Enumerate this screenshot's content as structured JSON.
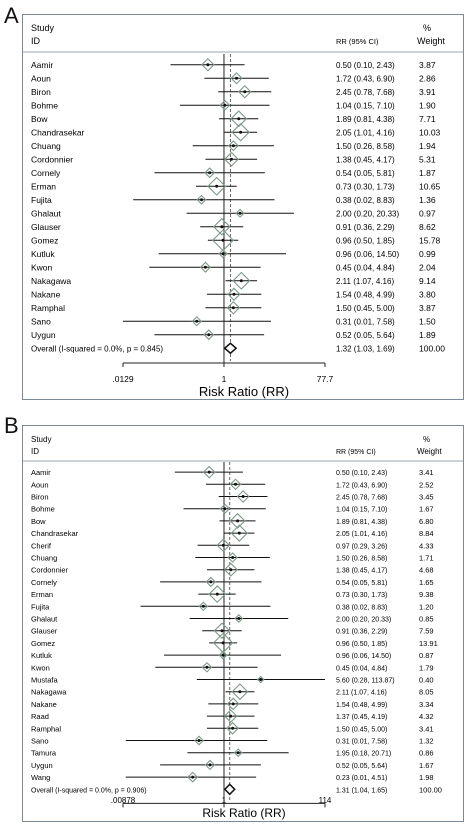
{
  "panels": [
    {
      "letter": "A",
      "study_header": "Study",
      "id_header": "ID",
      "rr_header": "RR (95% CI)",
      "pct_header": "%",
      "weight_header": "Weight",
      "xlabel": "Risk Ratio (RR)",
      "tick_labels": [
        ".0129",
        "1",
        "77.7"
      ]
    },
    {
      "letter": "B",
      "study_header": "Study",
      "id_header": "ID",
      "rr_header": "RR (95% CI)",
      "pct_header": "%",
      "weight_header": "Weight",
      "xlabel": "Risk Ratio (RR)",
      "tick_labels": [
        ".00878",
        "1",
        "114"
      ]
    }
  ],
  "chart_data": [
    {
      "type": "forest",
      "xlabel": "Risk Ratio (RR)",
      "xscale": "log",
      "xlim": [
        0.0129,
        77.7
      ],
      "reference_line": 1,
      "pooled_dashed_line": 1.32,
      "studies": [
        {
          "name": "Aamir",
          "rr": 0.5,
          "lo": 0.1,
          "hi": 2.43,
          "ci_text": "0.50 (0.10, 2.43)",
          "weight": "3.87"
        },
        {
          "name": "Aoun",
          "rr": 1.72,
          "lo": 0.43,
          "hi": 6.9,
          "ci_text": "1.72 (0.43, 6.90)",
          "weight": "2.86"
        },
        {
          "name": "Biron",
          "rr": 2.45,
          "lo": 0.78,
          "hi": 7.68,
          "ci_text": "2.45 (0.78, 7.68)",
          "weight": "3.91"
        },
        {
          "name": "Bohme",
          "rr": 1.04,
          "lo": 0.15,
          "hi": 7.1,
          "ci_text": "1.04 (0.15, 7.10)",
          "weight": "1.90"
        },
        {
          "name": "Bow",
          "rr": 1.89,
          "lo": 0.81,
          "hi": 4.38,
          "ci_text": "1.89 (0.81, 4.38)",
          "weight": "7.71"
        },
        {
          "name": "Chandrasekar",
          "rr": 2.05,
          "lo": 1.01,
          "hi": 4.16,
          "ci_text": "2.05 (1.01, 4.16)",
          "weight": "10.03"
        },
        {
          "name": "Chuang",
          "rr": 1.5,
          "lo": 0.26,
          "hi": 8.58,
          "ci_text": "1.50 (0.26, 8.58)",
          "weight": "1.94"
        },
        {
          "name": "Cordonnier",
          "rr": 1.38,
          "lo": 0.45,
          "hi": 4.17,
          "ci_text": "1.38 (0.45, 4.17)",
          "weight": "5.31"
        },
        {
          "name": "Cornely",
          "rr": 0.54,
          "lo": 0.05,
          "hi": 5.81,
          "ci_text": "0.54 (0.05, 5.81)",
          "weight": "1.87"
        },
        {
          "name": "Erman",
          "rr": 0.73,
          "lo": 0.3,
          "hi": 1.73,
          "ci_text": "0.73 (0.30, 1.73)",
          "weight": "10.65"
        },
        {
          "name": "Fujita",
          "rr": 0.38,
          "lo": 0.02,
          "hi": 8.83,
          "ci_text": "0.38 (0.02, 8.83)",
          "weight": "1.36"
        },
        {
          "name": "Ghalaut",
          "rr": 2.0,
          "lo": 0.2,
          "hi": 20.33,
          "ci_text": "2.00 (0.20, 20.33)",
          "weight": "0.97"
        },
        {
          "name": "Glauser",
          "rr": 0.91,
          "lo": 0.36,
          "hi": 2.29,
          "ci_text": "0.91 (0.36, 2.29)",
          "weight": "8.62"
        },
        {
          "name": "Gomez",
          "rr": 0.96,
          "lo": 0.5,
          "hi": 1.85,
          "ci_text": "0.96 (0.50, 1.85)",
          "weight": "15.78"
        },
        {
          "name": "Kutluk",
          "rr": 0.96,
          "lo": 0.06,
          "hi": 14.5,
          "ci_text": "0.96 (0.06, 14.50)",
          "weight": "0.99"
        },
        {
          "name": "Kwon",
          "rr": 0.45,
          "lo": 0.04,
          "hi": 4.84,
          "ci_text": "0.45 (0.04, 4.84)",
          "weight": "2.04"
        },
        {
          "name": "Nakagawa",
          "rr": 2.11,
          "lo": 1.07,
          "hi": 4.16,
          "ci_text": "2.11 (1.07, 4.16)",
          "weight": "9.14"
        },
        {
          "name": "Nakane",
          "rr": 1.54,
          "lo": 0.48,
          "hi": 4.99,
          "ci_text": "1.54 (0.48, 4.99)",
          "weight": "3.80"
        },
        {
          "name": "Ramphal",
          "rr": 1.5,
          "lo": 0.45,
          "hi": 5.0,
          "ci_text": "1.50 (0.45, 5.00)",
          "weight": "3.87"
        },
        {
          "name": "Sano",
          "rr": 0.31,
          "lo": 0.01,
          "hi": 7.58,
          "ci_text": "0.31 (0.01, 7.58)",
          "weight": "1.50"
        },
        {
          "name": "Uygun",
          "rr": 0.52,
          "lo": 0.05,
          "hi": 5.64,
          "ci_text": "0.52 (0.05, 5.64)",
          "weight": "1.89"
        }
      ],
      "overall": {
        "label": "Overall  (I-squared = 0.0%, p = 0.845)",
        "rr": 1.32,
        "lo": 1.03,
        "hi": 1.69,
        "ci_text": "1.32 (1.03, 1.69)",
        "weight": "100.00"
      }
    },
    {
      "type": "forest",
      "xlabel": "Risk Ratio (RR)",
      "xscale": "log",
      "xlim": [
        0.00878,
        114
      ],
      "reference_line": 1,
      "pooled_dashed_line": 1.31,
      "studies": [
        {
          "name": "Aamir",
          "rr": 0.5,
          "lo": 0.1,
          "hi": 2.43,
          "ci_text": "0.50 (0.10, 2.43)",
          "weight": "3.41"
        },
        {
          "name": "Aoun",
          "rr": 1.72,
          "lo": 0.43,
          "hi": 6.9,
          "ci_text": "1.72 (0.43, 6.90)",
          "weight": "2.52"
        },
        {
          "name": "Biron",
          "rr": 2.45,
          "lo": 0.78,
          "hi": 7.68,
          "ci_text": "2.45 (0.78, 7.68)",
          "weight": "3.45"
        },
        {
          "name": "Bohme",
          "rr": 1.04,
          "lo": 0.15,
          "hi": 7.1,
          "ci_text": "1.04 (0.15, 7.10)",
          "weight": "1.67"
        },
        {
          "name": "Bow",
          "rr": 1.89,
          "lo": 0.81,
          "hi": 4.38,
          "ci_text": "1.89 (0.81, 4.38)",
          "weight": "6.80"
        },
        {
          "name": "Chandrasekar",
          "rr": 2.05,
          "lo": 1.01,
          "hi": 4.16,
          "ci_text": "2.05 (1.01, 4.16)",
          "weight": "8.84"
        },
        {
          "name": "Cherif",
          "rr": 0.97,
          "lo": 0.29,
          "hi": 3.26,
          "ci_text": "0.97 (0.29, 3.26)",
          "weight": "4.33"
        },
        {
          "name": "Chuang",
          "rr": 1.5,
          "lo": 0.26,
          "hi": 8.58,
          "ci_text": "1.50 (0.26, 8.58)",
          "weight": "1.71"
        },
        {
          "name": "Cordonnier",
          "rr": 1.38,
          "lo": 0.45,
          "hi": 4.17,
          "ci_text": "1.38 (0.45, 4.17)",
          "weight": "4.68"
        },
        {
          "name": "Cornely",
          "rr": 0.54,
          "lo": 0.05,
          "hi": 5.81,
          "ci_text": "0.54 (0.05, 5.81)",
          "weight": "1.65"
        },
        {
          "name": "Erman",
          "rr": 0.73,
          "lo": 0.3,
          "hi": 1.73,
          "ci_text": "0.73 (0.30, 1.73)",
          "weight": "9.38"
        },
        {
          "name": "Fujita",
          "rr": 0.38,
          "lo": 0.02,
          "hi": 8.83,
          "ci_text": "0.38 (0.02, 8.83)",
          "weight": "1.20"
        },
        {
          "name": "Ghalaut",
          "rr": 2.0,
          "lo": 0.2,
          "hi": 20.33,
          "ci_text": "2.00 (0.20, 20.33)",
          "weight": "0.85"
        },
        {
          "name": "Glauser",
          "rr": 0.91,
          "lo": 0.36,
          "hi": 2.29,
          "ci_text": "0.91 (0.36, 2.29)",
          "weight": "7.59"
        },
        {
          "name": "Gomez",
          "rr": 0.96,
          "lo": 0.5,
          "hi": 1.85,
          "ci_text": "0.96 (0.50, 1.85)",
          "weight": "13.91"
        },
        {
          "name": "Kutluk",
          "rr": 0.96,
          "lo": 0.06,
          "hi": 14.5,
          "ci_text": "0.96 (0.06, 14.50)",
          "weight": "0.87"
        },
        {
          "name": "Kwon",
          "rr": 0.45,
          "lo": 0.04,
          "hi": 4.84,
          "ci_text": "0.45 (0.04, 4.84)",
          "weight": "1.79"
        },
        {
          "name": "Mustafa",
          "rr": 5.6,
          "lo": 0.28,
          "hi": 113.87,
          "ci_text": "5.60 (0.28, 113.87)",
          "weight": "0.40"
        },
        {
          "name": "Nakagawa",
          "rr": 2.11,
          "lo": 1.07,
          "hi": 4.16,
          "ci_text": "2.11 (1.07, 4.16)",
          "weight": "8.05"
        },
        {
          "name": "Nakane",
          "rr": 1.54,
          "lo": 0.48,
          "hi": 4.99,
          "ci_text": "1.54 (0.48, 4.99)",
          "weight": "3.34"
        },
        {
          "name": "Raad",
          "rr": 1.37,
          "lo": 0.45,
          "hi": 4.19,
          "ci_text": "1.37 (0.45, 4.19)",
          "weight": "4.32"
        },
        {
          "name": "Ramphal",
          "rr": 1.5,
          "lo": 0.45,
          "hi": 5.0,
          "ci_text": "1.50 (0.45, 5.00)",
          "weight": "3.41"
        },
        {
          "name": "Sano",
          "rr": 0.31,
          "lo": 0.01,
          "hi": 7.58,
          "ci_text": "0.31 (0.01, 7.58)",
          "weight": "1.32"
        },
        {
          "name": "Tamura",
          "rr": 1.95,
          "lo": 0.18,
          "hi": 20.71,
          "ci_text": "1.95 (0.18, 20.71)",
          "weight": "0.86"
        },
        {
          "name": "Uygun",
          "rr": 0.52,
          "lo": 0.05,
          "hi": 5.64,
          "ci_text": "0.52 (0.05, 5.64)",
          "weight": "1.67"
        },
        {
          "name": "Wang",
          "rr": 0.23,
          "lo": 0.01,
          "hi": 4.51,
          "ci_text": "0.23 (0.01, 4.51)",
          "weight": "1.98"
        }
      ],
      "overall": {
        "label": "Overall  (I-squared = 0.0%, p = 0.906)",
        "rr": 1.31,
        "lo": 1.04,
        "hi": 1.65,
        "ci_text": "1.31 (1.04, 1.65)",
        "weight": "100.00"
      }
    }
  ]
}
